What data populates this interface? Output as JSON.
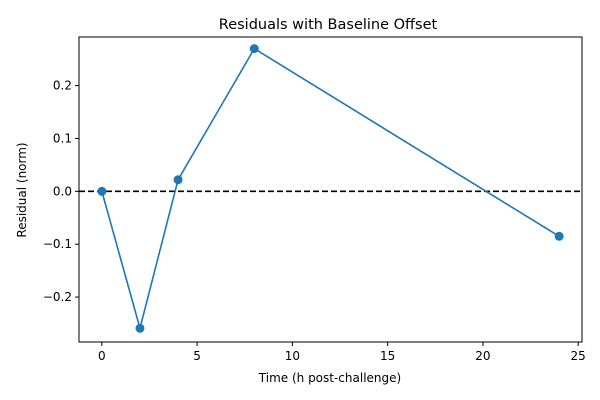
{
  "chart_data": {
    "type": "line",
    "title": "Residuals with Baseline Offset",
    "xlabel": "Time (h post-challenge)",
    "ylabel": "Residual (norm)",
    "xlim": [
      -1.2,
      25.2
    ],
    "ylim": [
      -0.285,
      0.292
    ],
    "xticks": [
      0,
      5,
      10,
      15,
      20,
      25
    ],
    "xtick_labels": [
      "0",
      "5",
      "10",
      "15",
      "20",
      "25"
    ],
    "yticks": [
      -0.2,
      -0.1,
      0.0,
      0.1,
      0.2
    ],
    "ytick_labels": [
      "−0.2",
      "−0.1",
      "0.0",
      "0.1",
      "0.2"
    ],
    "grid": false,
    "legend": "none",
    "series": [
      {
        "x": [
          0,
          2,
          4,
          8,
          24
        ],
        "y": [
          0.0,
          -0.259,
          0.022,
          0.27,
          -0.085
        ],
        "color": "#1f77b4",
        "marker": "circle"
      }
    ],
    "reference_lines": [
      {
        "orientation": "horizontal",
        "value": 0.0,
        "style": "dashed",
        "color": "#000000"
      }
    ]
  }
}
